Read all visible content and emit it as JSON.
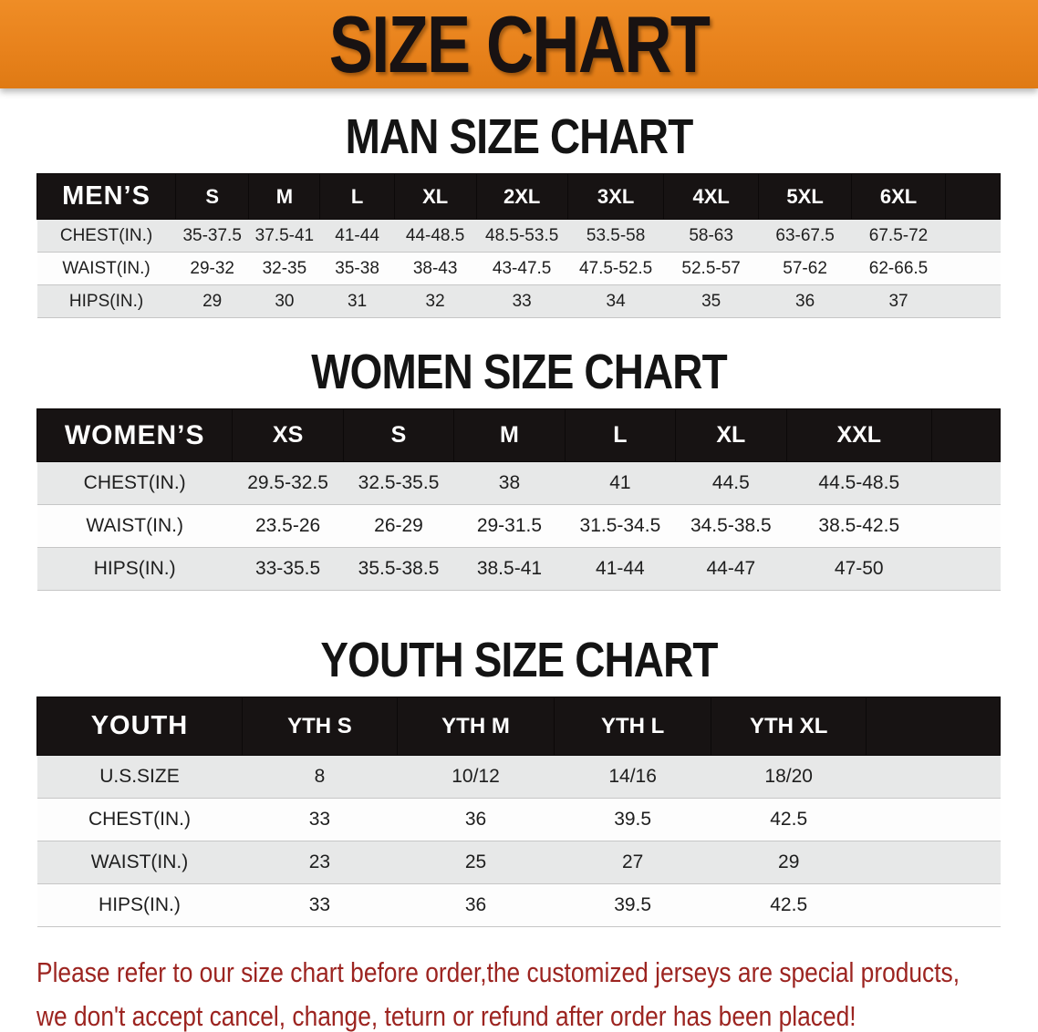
{
  "banner": {
    "title": "SIZE CHART"
  },
  "colors": {
    "banner_bg": "#e8821c",
    "banner_bg_light": "#ef8d26",
    "header_bg": "#171313",
    "row_alt": "#e7e8e8",
    "footer_text": "#9c2420"
  },
  "man": {
    "heading": "MAN SIZE CHART",
    "label": "MEN’S",
    "sizes": [
      "S",
      "M",
      "L",
      "XL",
      "2XL",
      "3XL",
      "4XL",
      "5XL",
      "6XL"
    ],
    "rows": [
      {
        "label": "CHEST(IN.)",
        "values": [
          "35-37.5",
          "37.5-41",
          "41-44",
          "44-48.5",
          "48.5-53.5",
          "53.5-58",
          "58-63",
          "63-67.5",
          "67.5-72"
        ]
      },
      {
        "label": "WAIST(IN.)",
        "values": [
          "29-32",
          "32-35",
          "35-38",
          "38-43",
          "43-47.5",
          "47.5-52.5",
          "52.5-57",
          "57-62",
          "62-66.5"
        ]
      },
      {
        "label": "HIPS(IN.)",
        "values": [
          "29",
          "30",
          "31",
          "32",
          "33",
          "34",
          "35",
          "36",
          "37"
        ]
      }
    ]
  },
  "women": {
    "heading": "WOMEN SIZE CHART",
    "label": "WOMEN’S",
    "sizes": [
      "XS",
      "S",
      "M",
      "L",
      "XL",
      "XXL"
    ],
    "rows": [
      {
        "label": "CHEST(IN.)",
        "values": [
          "29.5-32.5",
          "32.5-35.5",
          "38",
          "41",
          "44.5",
          "44.5-48.5"
        ]
      },
      {
        "label": "WAIST(IN.)",
        "values": [
          "23.5-26",
          "26-29",
          "29-31.5",
          "31.5-34.5",
          "34.5-38.5",
          "38.5-42.5"
        ]
      },
      {
        "label": "HIPS(IN.)",
        "values": [
          "33-35.5",
          "35.5-38.5",
          "38.5-41",
          "41-44",
          "44-47",
          "47-50"
        ]
      }
    ]
  },
  "youth": {
    "heading": "YOUTH SIZE CHART",
    "label": "YOUTH",
    "sizes": [
      "YTH S",
      "YTH M",
      "YTH L",
      "YTH XL"
    ],
    "rows": [
      {
        "label": "U.S.SIZE",
        "values": [
          "8",
          "10/12",
          "14/16",
          "18/20"
        ]
      },
      {
        "label": "CHEST(IN.)",
        "values": [
          "33",
          "36",
          "39.5",
          "42.5"
        ]
      },
      {
        "label": "WAIST(IN.)",
        "values": [
          "23",
          "25",
          "27",
          "29"
        ]
      },
      {
        "label": "HIPS(IN.)",
        "values": [
          "33",
          "36",
          "39.5",
          "42.5"
        ]
      }
    ]
  },
  "footer": {
    "line1": "Please refer to our size chart before order,the customized jerseys are special products,",
    "line2": "we don't accept cancel, change, teturn or refund after order has been placed!"
  }
}
